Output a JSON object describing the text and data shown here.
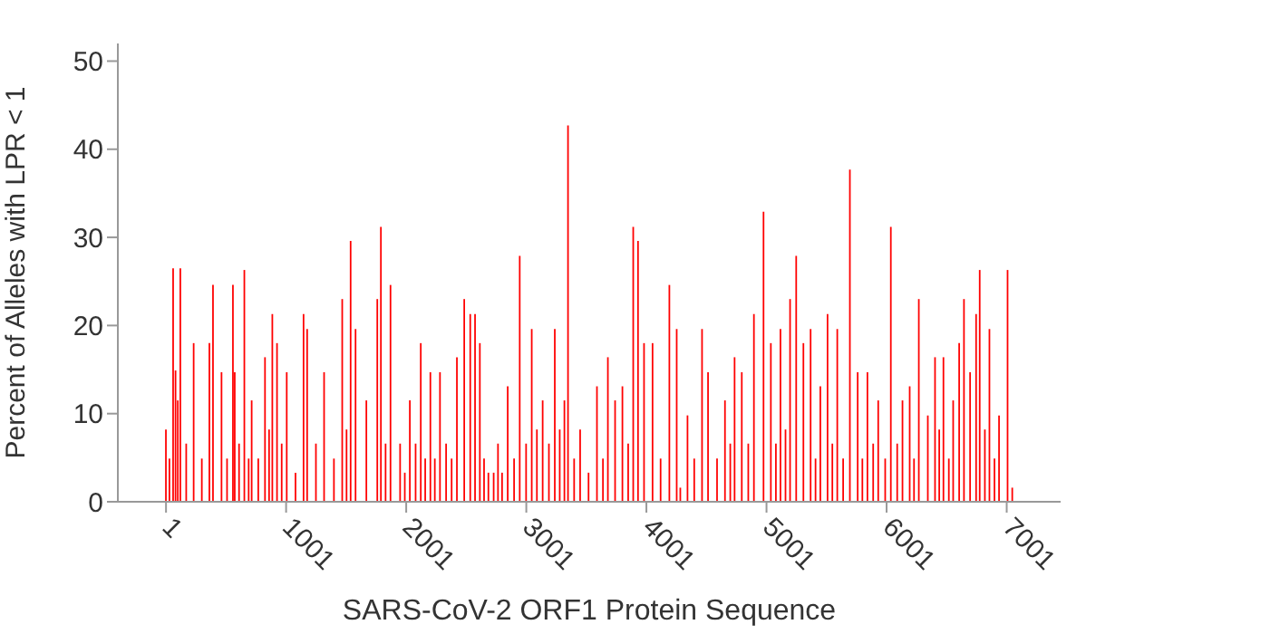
{
  "chart_data": {
    "type": "bar",
    "xlabel": "SARS-CoV-2 ORF1 Protein Sequence",
    "ylabel": "Percent of Alleles with LPR < 1",
    "color": "#ff0000",
    "xlim": [
      -400,
      7450
    ],
    "xticks": [
      1,
      1001,
      2001,
      3001,
      4001,
      5001,
      6001,
      7001
    ],
    "ylim": [
      0,
      52
    ],
    "yticks": [
      0,
      10,
      20,
      30,
      40,
      50
    ],
    "x": [
      1,
      30,
      61,
      81,
      100,
      121,
      170,
      232,
      300,
      363,
      393,
      420,
      464,
      510,
      559,
      574,
      610,
      654,
      690,
      715,
      770,
      826,
      860,
      887,
      926,
      965,
      1007,
      1080,
      1147,
      1177,
      1250,
      1318,
      1400,
      1469,
      1505,
      1539,
      1580,
      1670,
      1761,
      1791,
      1830,
      1871,
      1951,
      1990,
      2032,
      2080,
      2123,
      2160,
      2203,
      2240,
      2283,
      2334,
      2380,
      2424,
      2485,
      2535,
      2575,
      2615,
      2650,
      2686,
      2730,
      2766,
      2800,
      2847,
      2900,
      2947,
      3000,
      3047,
      3090,
      3138,
      3190,
      3239,
      3280,
      3319,
      3349,
      3400,
      3450,
      3520,
      3590,
      3640,
      3681,
      3741,
      3802,
      3850,
      3892,
      3932,
      3982,
      4053,
      4120,
      4193,
      4254,
      4284,
      4344,
      4400,
      4465,
      4515,
      4590,
      4656,
      4700,
      4736,
      4796,
      4850,
      4897,
      4977,
      5038,
      5080,
      5118,
      5160,
      5198,
      5249,
      5309,
      5330,
      5369,
      5410,
      5450,
      5510,
      5550,
      5591,
      5640,
      5696,
      5761,
      5800,
      5842,
      5890,
      5932,
      5990,
      6037,
      6090,
      6134,
      6194,
      6230,
      6270,
      6345,
      6405,
      6440,
      6475,
      6520,
      6556,
      6606,
      6646,
      6697,
      6747,
      6777,
      6820,
      6858,
      6900,
      6938,
      7009,
      7048
    ],
    "values": [
      8.2,
      4.9,
      26.5,
      14.9,
      11.5,
      26.5,
      6.6,
      18,
      4.9,
      18,
      24.6,
      0,
      14.7,
      4.9,
      24.6,
      14.7,
      6.6,
      26.3,
      4.9,
      11.5,
      4.9,
      16.4,
      8.2,
      21.3,
      18,
      6.6,
      14.7,
      3.3,
      21.3,
      19.6,
      6.6,
      14.7,
      4.9,
      23,
      8.2,
      29.6,
      19.6,
      11.5,
      23,
      31.2,
      6.6,
      24.6,
      6.6,
      3.3,
      11.5,
      6.6,
      18,
      4.9,
      14.7,
      4.9,
      14.7,
      6.6,
      4.9,
      16.4,
      23,
      21.3,
      21.3,
      18,
      4.9,
      3.3,
      3.3,
      6.6,
      3.3,
      13.1,
      4.9,
      27.9,
      6.6,
      19.6,
      8.2,
      11.5,
      6.6,
      19.6,
      8.2,
      11.5,
      42.7,
      4.9,
      8.2,
      3.3,
      13.1,
      4.9,
      16.4,
      11.5,
      13.1,
      6.6,
      31.2,
      29.6,
      18,
      18,
      4.9,
      24.6,
      19.6,
      1.6,
      9.8,
      4.9,
      19.6,
      14.7,
      4.9,
      11.5,
      6.6,
      16.4,
      14.7,
      6.6,
      21.3,
      32.9,
      18,
      6.6,
      19.6,
      8.2,
      23,
      27.9,
      18,
      0,
      19.6,
      4.9,
      13.1,
      21.3,
      6.6,
      19.6,
      4.9,
      37.7,
      14.7,
      4.9,
      14.7,
      6.6,
      11.5,
      4.9,
      31.2,
      6.6,
      11.5,
      13.1,
      4.9,
      23,
      9.8,
      16.4,
      8.2,
      16.4,
      4.9,
      11.5,
      18,
      23,
      14.7,
      21.3,
      26.3,
      8.2,
      19.6,
      4.9,
      9.8,
      26.3,
      1.6
    ]
  }
}
